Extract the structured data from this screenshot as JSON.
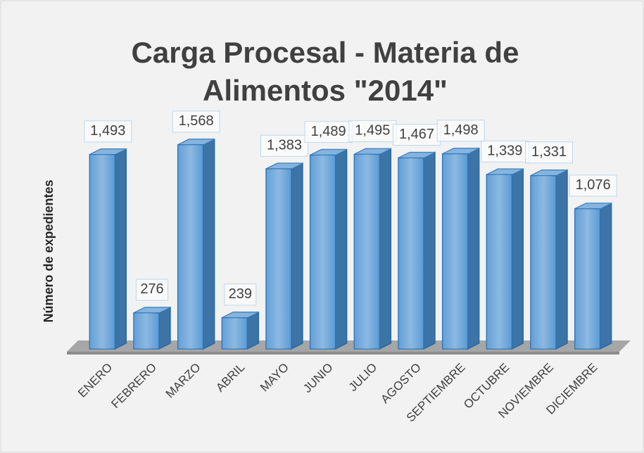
{
  "chart_data": {
    "type": "bar3d",
    "title": [
      "Carga Procesal - Materia de",
      "Alimentos \"2014\""
    ],
    "y_label": "Número de expedientes",
    "categories": [
      "ENERO",
      "FEBRERO",
      "MARZO",
      "ABRIL",
      "MAYO",
      "JUNIO",
      "JULIO",
      "AGOSTO",
      "SEPTIEMBRE",
      "OCTUBRE",
      "NOVIEMBRE",
      "DICIEMBRE"
    ],
    "values": [
      1493,
      276,
      1568,
      239,
      1383,
      1489,
      1495,
      1467,
      1498,
      1339,
      1331,
      1076
    ],
    "value_labels": [
      "1,493",
      "276",
      "1,568",
      "239",
      "1,383",
      "1,489",
      "1,495",
      "1,467",
      "1,498",
      "1,339",
      "1,331",
      "1,076"
    ],
    "color": "#5b9bd5",
    "ylim": [
      0,
      1600
    ]
  }
}
